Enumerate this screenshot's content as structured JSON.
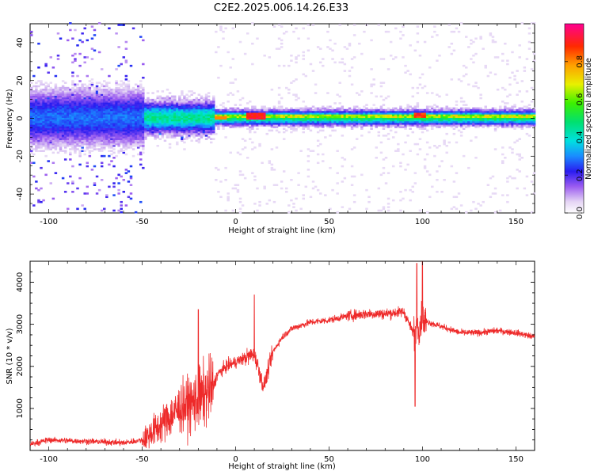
{
  "title": "C2E2.2025.006.14.26.E33",
  "chart_data": [
    {
      "type": "heatmap",
      "name": "spectrogram",
      "xlabel": "Height of straight line (km)",
      "ylabel": "Frequency (Hz)",
      "xlim": [
        -110,
        160
      ],
      "ylim": [
        -50,
        50
      ],
      "xticks": [
        -100,
        -50,
        0,
        50,
        100,
        150
      ],
      "yticks": [
        -40,
        -20,
        0,
        20,
        40
      ],
      "colorbar": {
        "label": "Normalized spectral amplitude",
        "range": [
          0.0,
          1.0
        ],
        "ticks": [
          0.0,
          0.2,
          0.4,
          0.6,
          0.8
        ],
        "tick_labels": [
          "0.0",
          "0.2",
          "0.4",
          "0.6",
          "0.8"
        ],
        "colormap": "rainbow-white-lavender-to-magenta"
      },
      "description_bands": [
        {
          "x_range": [
            -110,
            -50
          ],
          "freq_spread_hz": 10,
          "amplitude": 0.3
        },
        {
          "x_range": [
            -50,
            -12
          ],
          "freq_spread_hz": 6,
          "amplitude": 0.5
        },
        {
          "x_range": [
            -12,
            160
          ],
          "freq_spread_hz": 3,
          "amplitude": 0.55
        },
        {
          "x_range": [
            5,
            15
          ],
          "freq_spread_hz": 2,
          "amplitude": 0.95
        },
        {
          "x_range": [
            95,
            100
          ],
          "freq_spread_hz": 2,
          "amplitude": 0.9
        }
      ]
    },
    {
      "type": "line",
      "name": "snr",
      "xlabel": "Height of straight line (km)",
      "ylabel": "SNR (10 * v/v)",
      "xlim": [
        -110,
        160
      ],
      "ylim": [
        0,
        4500
      ],
      "xticks": [
        -100,
        -50,
        0,
        50,
        100,
        150
      ],
      "yticks": [
        1000,
        2000,
        3000,
        4000
      ],
      "series_color": "#ee2a2a",
      "trend": {
        "x": [
          -110,
          -100,
          -80,
          -60,
          -50,
          -40,
          -30,
          -20,
          -12,
          -10,
          -5,
          0,
          10,
          15,
          20,
          25,
          30,
          40,
          50,
          60,
          70,
          80,
          90,
          95,
          100,
          110,
          120,
          130,
          140,
          150,
          160
        ],
        "y": [
          150,
          250,
          220,
          180,
          250,
          600,
          1000,
          1200,
          1500,
          1800,
          2000,
          2100,
          2300,
          1500,
          2350,
          2700,
          2900,
          3050,
          3100,
          3200,
          3250,
          3250,
          3300,
          2800,
          3100,
          2950,
          2800,
          2800,
          2850,
          2800,
          2700
        ]
      },
      "peaks": [
        {
          "x": -20,
          "y": 3350
        },
        {
          "x": 10,
          "y": 3700
        },
        {
          "x": 97,
          "y": 4450
        },
        {
          "x": 100,
          "y": 4500
        },
        {
          "x": 96,
          "y": 1050
        }
      ]
    }
  ]
}
